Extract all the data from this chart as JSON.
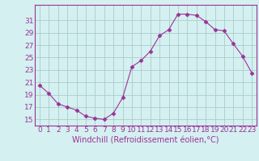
{
  "x": [
    0,
    1,
    2,
    3,
    4,
    5,
    6,
    7,
    8,
    9,
    10,
    11,
    12,
    13,
    14,
    15,
    16,
    17,
    18,
    19,
    20,
    21,
    22,
    23
  ],
  "y": [
    20.5,
    19.2,
    17.5,
    17.0,
    16.5,
    15.5,
    15.2,
    15.0,
    16.0,
    18.5,
    23.5,
    24.5,
    26.0,
    28.5,
    29.5,
    32.0,
    32.0,
    31.8,
    30.8,
    29.5,
    29.3,
    27.2,
    25.2,
    22.5
  ],
  "line_color": "#993399",
  "marker": "D",
  "marker_size": 2.5,
  "bg_color": "#d5f0f0",
  "grid_color": "#aacccc",
  "xlabel": "Windchill (Refroidissement éolien,°C)",
  "xlabel_fontsize": 7,
  "xlabel_color": "#993399",
  "yticks": [
    15,
    17,
    19,
    21,
    23,
    25,
    27,
    29,
    31
  ],
  "ylim": [
    14.0,
    33.5
  ],
  "xlim": [
    -0.5,
    23.5
  ],
  "tick_fontsize": 6.5,
  "tick_color": "#993399",
  "spine_color": "#993399"
}
